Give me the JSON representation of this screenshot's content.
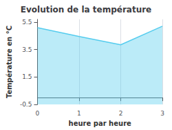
{
  "chart_data": {
    "type": "area",
    "title": "Evolution de la température",
    "xlabel": "heure par heure",
    "ylabel": "Température en °C",
    "x": [
      0,
      1,
      2,
      3
    ],
    "values": [
      5.1,
      4.45,
      3.85,
      5.2
    ],
    "color": "#55ccee",
    "xlim": [
      0,
      3
    ],
    "xticks": [
      0,
      1,
      2,
      3
    ],
    "ylim": [
      -0.5,
      5.7
    ],
    "yticks": [
      -0.5,
      1.5,
      3.5,
      5.5
    ],
    "grid": "x"
  }
}
